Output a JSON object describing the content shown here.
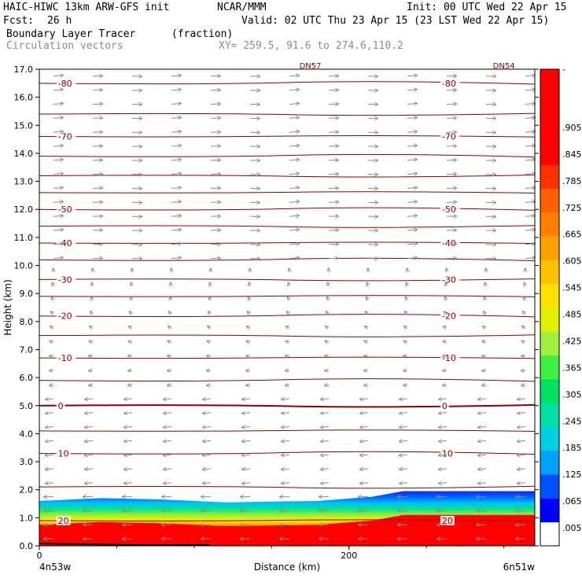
{
  "header": {
    "line1_left": "HAIC-HIWC 13km ARW-GFS init",
    "line1_mid": "NCAR/MMM",
    "line1_right": "Init: 00 UTC Wed 22 Apr 15",
    "line2_left": "Fcst:",
    "line2_fcst": "26 h",
    "line2_right": "Valid: 02 UTC Thu 23 Apr 15 (23 LST Wed 22 Apr 15)",
    "line3_left": "Boundary Layer Tracer",
    "line3_mid": "(fraction)",
    "line4_left": "Circulation vectors",
    "line4_mid": "XY= 259.5, 91.6 to 274.6,110.2"
  },
  "chart_data": {
    "type": "cross-section",
    "ylabel": "Height (km)",
    "xlabel": "Distance (km)",
    "x_start_label": "4n53w",
    "x_end_label": "6n51w",
    "x_ticks": [
      {
        "value": 0,
        "label": "0"
      },
      {
        "value": 200,
        "label": "200"
      }
    ],
    "xlim": [
      0,
      320
    ],
    "ylim": [
      0,
      17
    ],
    "y_ticks": [
      "0.0",
      "1.0",
      "2.0",
      "3.0",
      "4.0",
      "5.0",
      "6.0",
      "7.0",
      "8.0",
      "9.0",
      "10.0",
      "11.0",
      "12.0",
      "13.0",
      "14.0",
      "15.0",
      "16.0",
      "17.0"
    ],
    "top_labels": [
      "DN57",
      "DN54"
    ],
    "temperature_contours_C": [
      {
        "value": -80,
        "height_km": 16.5,
        "label": "-80"
      },
      {
        "value": -75,
        "height_km": 15.4,
        "label": ""
      },
      {
        "value": -70,
        "height_km": 14.6,
        "label": "-70"
      },
      {
        "value": -65,
        "height_km": 13.9,
        "label": ""
      },
      {
        "value": -60,
        "height_km": 13.2,
        "label": ""
      },
      {
        "value": -55,
        "height_km": 12.6,
        "label": ""
      },
      {
        "value": -50,
        "height_km": 12.0,
        "label": "-50"
      },
      {
        "value": -45,
        "height_km": 11.4,
        "label": ""
      },
      {
        "value": -40,
        "height_km": 10.8,
        "label": "-40"
      },
      {
        "value": -35,
        "height_km": 10.2,
        "label": ""
      },
      {
        "value": -30,
        "height_km": 9.5,
        "label": "-30"
      },
      {
        "value": -25,
        "height_km": 8.9,
        "label": ""
      },
      {
        "value": -20,
        "height_km": 8.2,
        "label": "-20"
      },
      {
        "value": -15,
        "height_km": 7.5,
        "label": ""
      },
      {
        "value": -10,
        "height_km": 6.7,
        "label": "-10"
      },
      {
        "value": -5,
        "height_km": 5.9,
        "label": ""
      },
      {
        "value": 0,
        "height_km": 5.0,
        "label": "0"
      },
      {
        "value": 5,
        "height_km": 4.1,
        "label": ""
      },
      {
        "value": 10,
        "height_km": 3.3,
        "label": "10"
      },
      {
        "value": 15,
        "height_km": 2.1,
        "label": ""
      },
      {
        "value": 20,
        "height_km": 0.9,
        "label": "20"
      }
    ],
    "tracer_top_km": [
      {
        "x": 0,
        "y": 1.6
      },
      {
        "x": 40,
        "y": 1.7
      },
      {
        "x": 80,
        "y": 1.65
      },
      {
        "x": 120,
        "y": 1.55
      },
      {
        "x": 180,
        "y": 1.6
      },
      {
        "x": 215,
        "y": 1.75
      },
      {
        "x": 235,
        "y": 1.95
      },
      {
        "x": 320,
        "y": 1.95
      }
    ],
    "colorbar": {
      "labels": [
        ".005",
        ".065",
        ".125",
        ".185",
        ".245",
        ".305",
        ".365",
        ".425",
        ".485",
        ".545",
        ".605",
        ".665",
        ".725",
        ".785",
        ".845",
        ".905",
        "-"
      ],
      "colors": [
        "#ffffff",
        "#0000ff",
        "#0050ff",
        "#00a0ff",
        "#00d0e0",
        "#00e0a0",
        "#00e060",
        "#40f040",
        "#a0f040",
        "#e0f000",
        "#ffe000",
        "#ffc000",
        "#ffa000",
        "#ff8000",
        "#ff6000",
        "#ff3000",
        "#ff0000",
        "#ff0000",
        "#ff0000",
        "#ff0000"
      ]
    }
  }
}
